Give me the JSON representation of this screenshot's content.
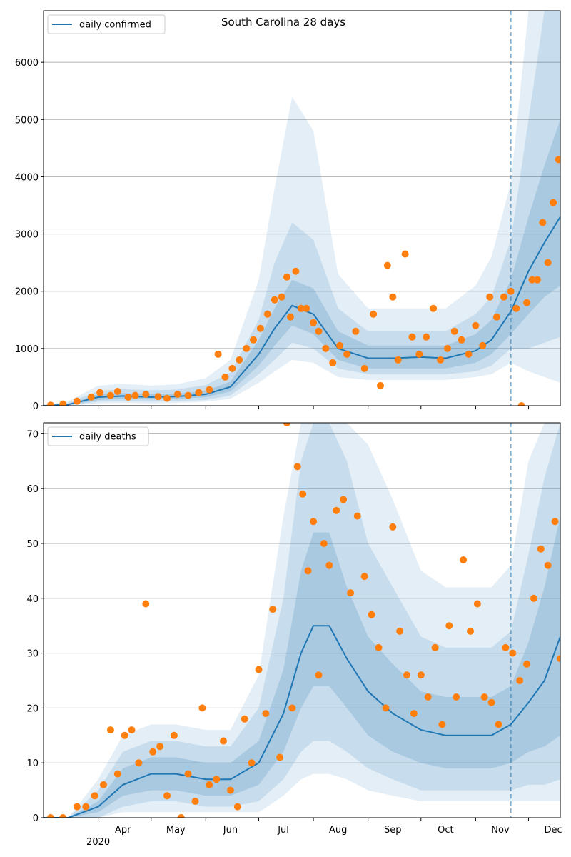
{
  "figure_title": "South Carolina 28 days",
  "colors": {
    "line": "#1f77b4",
    "observed": "#ff7f0e",
    "band": "#1f77b4",
    "grid": "#b0b0b0",
    "forecast_marker": "#1f77b4"
  },
  "chart_data": [
    {
      "type": "line",
      "title": "South Carolina 28 days",
      "legend": "top-left",
      "grid": "horizontal",
      "series": [
        {
          "name": "daily confirmed",
          "kind": "line"
        }
      ],
      "ylim": [
        0,
        6900
      ],
      "yticks": [
        0,
        1000,
        2000,
        3000,
        4000,
        5000,
        6000
      ],
      "ytick_labels": [
        "0",
        "1000",
        "2000",
        "3000",
        "4000",
        "5000",
        "6000"
      ],
      "x_month_ticks": [
        "Apr",
        "May",
        "Jun",
        "Jul",
        "Aug",
        "Sep",
        "Oct",
        "Nov",
        "Dec"
      ],
      "x_year_label": "2020",
      "forecast_start": "2020-11-21",
      "dates": [
        "2020-03-01",
        "2020-03-15",
        "2020-04-01",
        "2020-04-15",
        "2020-05-01",
        "2020-05-15",
        "2020-06-01",
        "2020-06-15",
        "2020-07-01",
        "2020-07-10",
        "2020-07-20",
        "2020-08-01",
        "2020-08-15",
        "2020-09-01",
        "2020-09-15",
        "2020-10-01",
        "2020-10-15",
        "2020-11-01",
        "2020-11-10",
        "2020-11-21",
        "2020-12-01",
        "2020-12-10",
        "2020-12-19"
      ],
      "median": [
        0,
        20,
        150,
        170,
        150,
        160,
        200,
        330,
        900,
        1350,
        1750,
        1600,
        1000,
        830,
        830,
        850,
        830,
        960,
        1150,
        1650,
        2350,
        2850,
        3300
      ],
      "band_50": [
        [
          0,
          0
        ],
        [
          10,
          30
        ],
        [
          100,
          200
        ],
        [
          120,
          220
        ],
        [
          110,
          200
        ],
        [
          120,
          210
        ],
        [
          150,
          260
        ],
        [
          250,
          420
        ],
        [
          700,
          1150
        ],
        [
          1050,
          1700
        ],
        [
          1400,
          2200
        ],
        [
          1250,
          2050
        ],
        [
          800,
          1300
        ],
        [
          650,
          1050
        ],
        [
          650,
          1050
        ],
        [
          650,
          1050
        ],
        [
          650,
          1050
        ],
        [
          750,
          1250
        ],
        [
          900,
          1500
        ],
        [
          1250,
          2200
        ],
        [
          1600,
          3300
        ],
        [
          1900,
          4200
        ],
        [
          2100,
          5000
        ]
      ],
      "band_80": [
        [
          0,
          0
        ],
        [
          5,
          50
        ],
        [
          70,
          260
        ],
        [
          80,
          290
        ],
        [
          70,
          270
        ],
        [
          80,
          280
        ],
        [
          100,
          360
        ],
        [
          180,
          580
        ],
        [
          550,
          1500
        ],
        [
          800,
          2500
        ],
        [
          1100,
          3200
        ],
        [
          1000,
          2900
        ],
        [
          650,
          1700
        ],
        [
          550,
          1300
        ],
        [
          550,
          1300
        ],
        [
          550,
          1300
        ],
        [
          550,
          1300
        ],
        [
          600,
          1600
        ],
        [
          700,
          1900
        ],
        [
          1000,
          2900
        ],
        [
          1000,
          5000
        ],
        [
          1100,
          6900
        ],
        [
          1200,
          6900
        ]
      ],
      "band_95": [
        [
          0,
          0
        ],
        [
          0,
          80
        ],
        [
          40,
          350
        ],
        [
          50,
          380
        ],
        [
          40,
          350
        ],
        [
          50,
          370
        ],
        [
          70,
          480
        ],
        [
          120,
          800
        ],
        [
          400,
          2200
        ],
        [
          600,
          3800
        ],
        [
          800,
          5400
        ],
        [
          750,
          4800
        ],
        [
          500,
          2300
        ],
        [
          450,
          1700
        ],
        [
          450,
          1700
        ],
        [
          450,
          1700
        ],
        [
          450,
          1700
        ],
        [
          500,
          2100
        ],
        [
          550,
          2600
        ],
        [
          750,
          3900
        ],
        [
          600,
          6900
        ],
        [
          500,
          6900
        ],
        [
          400,
          6900
        ]
      ],
      "observed_dates": [
        "2020-03-05",
        "2020-03-12",
        "2020-03-20",
        "2020-03-28",
        "2020-04-02",
        "2020-04-08",
        "2020-04-12",
        "2020-04-18",
        "2020-04-22",
        "2020-04-28",
        "2020-05-05",
        "2020-05-10",
        "2020-05-16",
        "2020-05-22",
        "2020-05-28",
        "2020-06-03",
        "2020-06-08",
        "2020-06-12",
        "2020-06-16",
        "2020-06-20",
        "2020-06-24",
        "2020-06-28",
        "2020-07-02",
        "2020-07-06",
        "2020-07-10",
        "2020-07-14",
        "2020-07-17",
        "2020-07-19",
        "2020-07-22",
        "2020-07-25",
        "2020-07-28",
        "2020-08-01",
        "2020-08-04",
        "2020-08-08",
        "2020-08-12",
        "2020-08-16",
        "2020-08-20",
        "2020-08-25",
        "2020-08-30",
        "2020-09-04",
        "2020-09-08",
        "2020-09-12",
        "2020-09-15",
        "2020-09-18",
        "2020-09-22",
        "2020-09-26",
        "2020-09-30",
        "2020-10-04",
        "2020-10-08",
        "2020-10-12",
        "2020-10-16",
        "2020-10-20",
        "2020-10-24",
        "2020-10-28",
        "2020-11-01",
        "2020-11-05",
        "2020-11-09",
        "2020-11-13",
        "2020-11-17",
        "2020-11-21",
        "2020-11-24",
        "2020-11-27",
        "2020-11-30",
        "2020-12-03",
        "2020-12-06",
        "2020-12-09",
        "2020-12-12",
        "2020-12-15",
        "2020-12-18"
      ],
      "observed_values": [
        10,
        30,
        80,
        150,
        230,
        180,
        250,
        150,
        180,
        200,
        160,
        130,
        200,
        180,
        230,
        280,
        900,
        500,
        650,
        800,
        1000,
        1150,
        1350,
        1600,
        1850,
        1900,
        2250,
        1550,
        2350,
        1700,
        1700,
        1450,
        1300,
        1000,
        750,
        1050,
        900,
        1300,
        650,
        1600,
        350,
        2450,
        1900,
        800,
        2650,
        1200,
        900,
        1200,
        1700,
        800,
        1000,
        1300,
        1150,
        900,
        1400,
        1050,
        1900,
        1550,
        1900,
        2000,
        1700,
        0,
        1800,
        2200,
        2200,
        3200,
        2500,
        3550,
        4300
      ]
    },
    {
      "type": "line",
      "legend": "top-left",
      "grid": "horizontal",
      "series": [
        {
          "name": "daily deaths",
          "kind": "line"
        }
      ],
      "ylim": [
        0,
        72
      ],
      "yticks": [
        0,
        10,
        20,
        30,
        40,
        50,
        60,
        70
      ],
      "ytick_labels": [
        "0",
        "10",
        "20",
        "30",
        "40",
        "50",
        "60",
        "70"
      ],
      "x_month_ticks": [
        "Apr",
        "May",
        "Jun",
        "Jul",
        "Aug",
        "Sep",
        "Oct",
        "Nov",
        "Dec"
      ],
      "x_year_label": "2020",
      "forecast_start": "2020-11-21",
      "dates": [
        "2020-03-01",
        "2020-03-15",
        "2020-04-01",
        "2020-04-15",
        "2020-05-01",
        "2020-05-15",
        "2020-06-01",
        "2020-06-15",
        "2020-07-01",
        "2020-07-15",
        "2020-07-25",
        "2020-08-01",
        "2020-08-10",
        "2020-08-20",
        "2020-09-01",
        "2020-09-15",
        "2020-10-01",
        "2020-10-15",
        "2020-11-01",
        "2020-11-10",
        "2020-11-21",
        "2020-12-01",
        "2020-12-10",
        "2020-12-19"
      ],
      "median": [
        0,
        0,
        2,
        6,
        8,
        8,
        7,
        7,
        10,
        19,
        30,
        35,
        35,
        29,
        23,
        19,
        16,
        15,
        15,
        15,
        17,
        21,
        25,
        33
      ],
      "band_50": [
        [
          0,
          0
        ],
        [
          0,
          0
        ],
        [
          1,
          3
        ],
        [
          4,
          9
        ],
        [
          5,
          11
        ],
        [
          5,
          11
        ],
        [
          4,
          10
        ],
        [
          4,
          10
        ],
        [
          6,
          14
        ],
        [
          12,
          27
        ],
        [
          20,
          45
        ],
        [
          24,
          52
        ],
        [
          24,
          52
        ],
        [
          20,
          42
        ],
        [
          15,
          33
        ],
        [
          12,
          28
        ],
        [
          10,
          23
        ],
        [
          9,
          22
        ],
        [
          9,
          22
        ],
        [
          9,
          22
        ],
        [
          10,
          24
        ],
        [
          12,
          32
        ],
        [
          13,
          42
        ],
        [
          15,
          55
        ]
      ],
      "band_80": [
        [
          0,
          0
        ],
        [
          0,
          0
        ],
        [
          0,
          5
        ],
        [
          2,
          12
        ],
        [
          3,
          14
        ],
        [
          3,
          14
        ],
        [
          2,
          13
        ],
        [
          2,
          13
        ],
        [
          3,
          20
        ],
        [
          7,
          40
        ],
        [
          12,
          65
        ],
        [
          14,
          72
        ],
        [
          14,
          72
        ],
        [
          12,
          65
        ],
        [
          9,
          50
        ],
        [
          7,
          42
        ],
        [
          5,
          33
        ],
        [
          5,
          31
        ],
        [
          5,
          31
        ],
        [
          5,
          31
        ],
        [
          5,
          34
        ],
        [
          6,
          48
        ],
        [
          6,
          62
        ],
        [
          7,
          72
        ]
      ],
      "band_95": [
        [
          0,
          0
        ],
        [
          0,
          0
        ],
        [
          0,
          7
        ],
        [
          1,
          15
        ],
        [
          1,
          17
        ],
        [
          1,
          17
        ],
        [
          1,
          16
        ],
        [
          1,
          16
        ],
        [
          1,
          26
        ],
        [
          4,
          55
        ],
        [
          7,
          72
        ],
        [
          8,
          72
        ],
        [
          8,
          72
        ],
        [
          7,
          72
        ],
        [
          5,
          68
        ],
        [
          4,
          58
        ],
        [
          3,
          45
        ],
        [
          3,
          42
        ],
        [
          3,
          42
        ],
        [
          3,
          42
        ],
        [
          3,
          46
        ],
        [
          3,
          65
        ],
        [
          3,
          72
        ],
        [
          3,
          72
        ]
      ],
      "observed_dates": [
        "2020-03-05",
        "2020-03-12",
        "2020-03-20",
        "2020-03-25",
        "2020-03-30",
        "2020-04-04",
        "2020-04-08",
        "2020-04-12",
        "2020-04-16",
        "2020-04-20",
        "2020-04-24",
        "2020-04-28",
        "2020-05-02",
        "2020-05-06",
        "2020-05-10",
        "2020-05-14",
        "2020-05-18",
        "2020-05-22",
        "2020-05-26",
        "2020-05-30",
        "2020-06-03",
        "2020-06-07",
        "2020-06-11",
        "2020-06-15",
        "2020-06-19",
        "2020-06-23",
        "2020-06-27",
        "2020-07-01",
        "2020-07-05",
        "2020-07-09",
        "2020-07-13",
        "2020-07-17",
        "2020-07-20",
        "2020-07-23",
        "2020-07-26",
        "2020-07-29",
        "2020-08-01",
        "2020-08-04",
        "2020-08-07",
        "2020-08-10",
        "2020-08-14",
        "2020-08-18",
        "2020-08-22",
        "2020-08-26",
        "2020-08-30",
        "2020-09-03",
        "2020-09-07",
        "2020-09-11",
        "2020-09-15",
        "2020-09-19",
        "2020-09-23",
        "2020-09-27",
        "2020-10-01",
        "2020-10-05",
        "2020-10-09",
        "2020-10-13",
        "2020-10-17",
        "2020-10-21",
        "2020-10-25",
        "2020-10-29",
        "2020-11-02",
        "2020-11-06",
        "2020-11-10",
        "2020-11-14",
        "2020-11-18",
        "2020-11-22",
        "2020-11-26",
        "2020-11-30",
        "2020-12-04",
        "2020-12-08",
        "2020-12-12",
        "2020-12-16",
        "2020-12-19"
      ],
      "observed_values": [
        0,
        0,
        2,
        2,
        4,
        6,
        16,
        8,
        15,
        16,
        10,
        39,
        12,
        13,
        4,
        15,
        0,
        8,
        3,
        20,
        6,
        7,
        14,
        5,
        2,
        18,
        10,
        27,
        19,
        38,
        11,
        72,
        20,
        64,
        59,
        45,
        54,
        26,
        50,
        46,
        56,
        58,
        41,
        55,
        44,
        37,
        31,
        20,
        53,
        34,
        26,
        19,
        26,
        22,
        31,
        17,
        35,
        22,
        47,
        34,
        39,
        22,
        21,
        17,
        31,
        30,
        25,
        28,
        40,
        49,
        46,
        54,
        29
      ]
    }
  ]
}
